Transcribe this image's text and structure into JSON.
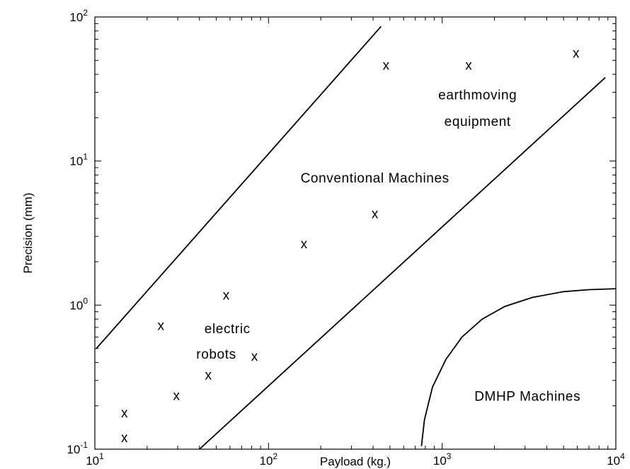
{
  "chart_data": {
    "type": "scatter",
    "xlabel": "Payload (kg.)",
    "ylabel": "Precision (mm)",
    "xscale": "log",
    "yscale": "log",
    "xlim": [
      10,
      10000
    ],
    "ylim": [
      0.1,
      100
    ],
    "grid": false,
    "x_ticks": [
      {
        "base": "10",
        "exp": "1",
        "value": 10
      },
      {
        "base": "10",
        "exp": "2",
        "value": 100
      },
      {
        "base": "10",
        "exp": "3",
        "value": 1000
      },
      {
        "base": "10",
        "exp": "4",
        "value": 10000
      }
    ],
    "y_ticks": [
      {
        "base": "10",
        "exp": "-1",
        "value": 0.1
      },
      {
        "base": "10",
        "exp": "0",
        "value": 1
      },
      {
        "base": "10",
        "exp": "1",
        "value": 10
      },
      {
        "base": "10",
        "exp": "2",
        "value": 100
      }
    ],
    "marker": "x",
    "points": [
      {
        "x": 14.8,
        "y": 0.12
      },
      {
        "x": 14.8,
        "y": 0.178
      },
      {
        "x": 24,
        "y": 0.72
      },
      {
        "x": 29.5,
        "y": 0.235
      },
      {
        "x": 45,
        "y": 0.325
      },
      {
        "x": 57,
        "y": 1.17
      },
      {
        "x": 83,
        "y": 0.44
      },
      {
        "x": 160,
        "y": 2.65
      },
      {
        "x": 410,
        "y": 4.3
      },
      {
        "x": 475,
        "y": 46
      },
      {
        "x": 1420,
        "y": 46
      },
      {
        "x": 5900,
        "y": 56
      }
    ],
    "lines": [
      {
        "name": "upper-boundary",
        "points": [
          {
            "x": 10.2,
            "y": 0.5
          },
          {
            "x": 445,
            "y": 86
          }
        ]
      },
      {
        "name": "lower-boundary",
        "points": [
          {
            "x": 40,
            "y": 0.1
          },
          {
            "x": 8700,
            "y": 38
          }
        ]
      }
    ],
    "dmhp_curve": [
      {
        "x": 760,
        "y": 0.105
      },
      {
        "x": 790,
        "y": 0.16
      },
      {
        "x": 880,
        "y": 0.27
      },
      {
        "x": 1050,
        "y": 0.42
      },
      {
        "x": 1300,
        "y": 0.6
      },
      {
        "x": 1700,
        "y": 0.8
      },
      {
        "x": 2300,
        "y": 0.98
      },
      {
        "x": 3300,
        "y": 1.13
      },
      {
        "x": 5000,
        "y": 1.24
      },
      {
        "x": 7000,
        "y": 1.28
      },
      {
        "x": 10000,
        "y": 1.3
      }
    ],
    "annotations": [
      {
        "id": "earthmoving-1",
        "text": "earthmoving",
        "x": 1600,
        "y": 29
      },
      {
        "id": "earthmoving-2",
        "text": "equipment",
        "x": 1600,
        "y": 19
      },
      {
        "id": "conventional",
        "text": "Conventional Machines",
        "x": 410,
        "y": 7.7
      },
      {
        "id": "electric-1",
        "text": "electric",
        "x": 58,
        "y": 0.69
      },
      {
        "id": "electric-2",
        "text": "robots",
        "x": 50,
        "y": 0.46
      },
      {
        "id": "dmhp",
        "text": "DMHP Machines",
        "x": 3100,
        "y": 0.235
      }
    ]
  }
}
